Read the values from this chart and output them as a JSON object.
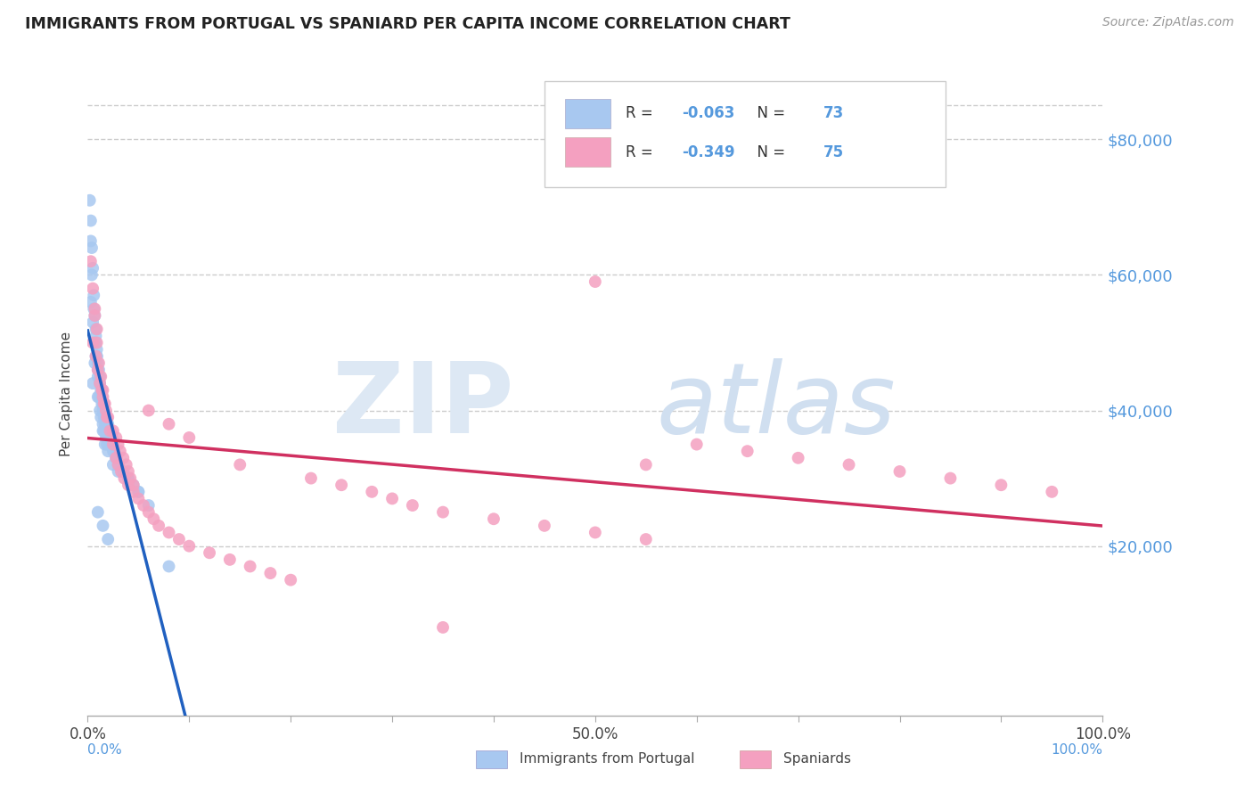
{
  "title": "IMMIGRANTS FROM PORTUGAL VS SPANIARD PER CAPITA INCOME CORRELATION CHART",
  "source": "Source: ZipAtlas.com",
  "ylabel": "Per Capita Income",
  "series1_label": "Immigrants from Portugal",
  "series1_color": "#a8c8f0",
  "series1_line_color": "#2060c0",
  "series1_R": -0.063,
  "series1_N": 73,
  "series2_label": "Spaniards",
  "series2_color": "#f4a0c0",
  "series2_line_color": "#d03060",
  "series2_R": -0.349,
  "series2_N": 75,
  "xlim": [
    0.0,
    1.0
  ],
  "ylim": [
    -5000,
    90000
  ],
  "yticks": [
    20000,
    40000,
    60000,
    80000
  ],
  "xticks": [
    0.0,
    0.1,
    0.2,
    0.3,
    0.4,
    0.5,
    0.6,
    0.7,
    0.8,
    0.9,
    1.0
  ],
  "xticklabels": [
    "0.0%",
    "",
    "",
    "",
    "",
    "50.0%",
    "",
    "",
    "",
    "",
    "100.0%"
  ],
  "yticklabels": [
    "$20,000",
    "$40,000",
    "$60,000",
    "$80,000"
  ],
  "axis_color": "#5599dd",
  "blue_x": [
    0.005,
    0.007,
    0.008,
    0.009,
    0.01,
    0.011,
    0.012,
    0.013,
    0.014,
    0.015,
    0.016,
    0.017,
    0.018,
    0.019,
    0.02,
    0.022,
    0.024,
    0.025,
    0.026,
    0.028,
    0.003,
    0.004,
    0.006,
    0.008,
    0.009,
    0.01,
    0.012,
    0.014,
    0.015,
    0.016,
    0.018,
    0.02,
    0.022,
    0.025,
    0.028,
    0.03,
    0.035,
    0.04,
    0.045,
    0.05,
    0.003,
    0.005,
    0.007,
    0.008,
    0.01,
    0.012,
    0.014,
    0.015,
    0.017,
    0.019,
    0.002,
    0.003,
    0.004,
    0.005,
    0.006,
    0.007,
    0.008,
    0.009,
    0.01,
    0.011,
    0.013,
    0.015,
    0.017,
    0.02,
    0.025,
    0.03,
    0.04,
    0.05,
    0.06,
    0.08,
    0.01,
    0.015,
    0.02
  ],
  "blue_y": [
    44000,
    47000,
    50000,
    48000,
    42000,
    46000,
    40000,
    43000,
    41000,
    38000,
    37000,
    39000,
    36000,
    35000,
    38000,
    37000,
    36000,
    35000,
    34000,
    33000,
    65000,
    60000,
    55000,
    52000,
    49000,
    47000,
    45000,
    43000,
    41000,
    39000,
    37000,
    36000,
    35000,
    34000,
    33000,
    32000,
    31000,
    30000,
    29000,
    28000,
    56000,
    53000,
    50000,
    48000,
    46000,
    44000,
    42000,
    40000,
    38000,
    36000,
    71000,
    68000,
    64000,
    61000,
    57000,
    54000,
    51000,
    48000,
    45000,
    42000,
    39000,
    37000,
    35000,
    34000,
    32000,
    31000,
    30000,
    28000,
    26000,
    17000,
    25000,
    23000,
    21000
  ],
  "pink_x": [
    0.005,
    0.007,
    0.008,
    0.009,
    0.01,
    0.012,
    0.014,
    0.015,
    0.016,
    0.018,
    0.02,
    0.025,
    0.028,
    0.03,
    0.032,
    0.035,
    0.038,
    0.04,
    0.042,
    0.045,
    0.003,
    0.005,
    0.007,
    0.009,
    0.011,
    0.013,
    0.015,
    0.017,
    0.019,
    0.022,
    0.025,
    0.028,
    0.03,
    0.033,
    0.036,
    0.04,
    0.045,
    0.05,
    0.055,
    0.06,
    0.065,
    0.07,
    0.08,
    0.09,
    0.1,
    0.12,
    0.14,
    0.16,
    0.18,
    0.2,
    0.22,
    0.25,
    0.28,
    0.3,
    0.32,
    0.35,
    0.4,
    0.45,
    0.5,
    0.55,
    0.6,
    0.65,
    0.7,
    0.75,
    0.8,
    0.85,
    0.9,
    0.95,
    0.5,
    0.55,
    0.06,
    0.08,
    0.1,
    0.15,
    0.35
  ],
  "pink_y": [
    50000,
    55000,
    48000,
    52000,
    46000,
    44000,
    43000,
    42000,
    41000,
    40000,
    39000,
    37000,
    36000,
    35000,
    34000,
    33000,
    32000,
    31000,
    30000,
    29000,
    62000,
    58000,
    54000,
    50000,
    47000,
    45000,
    43000,
    41000,
    39000,
    37000,
    35000,
    33000,
    32000,
    31000,
    30000,
    29000,
    28000,
    27000,
    26000,
    25000,
    24000,
    23000,
    22000,
    21000,
    20000,
    19000,
    18000,
    17000,
    16000,
    15000,
    30000,
    29000,
    28000,
    27000,
    26000,
    25000,
    24000,
    23000,
    22000,
    21000,
    35000,
    34000,
    33000,
    32000,
    31000,
    30000,
    29000,
    28000,
    59000,
    32000,
    40000,
    38000,
    36000,
    32000,
    8000
  ]
}
